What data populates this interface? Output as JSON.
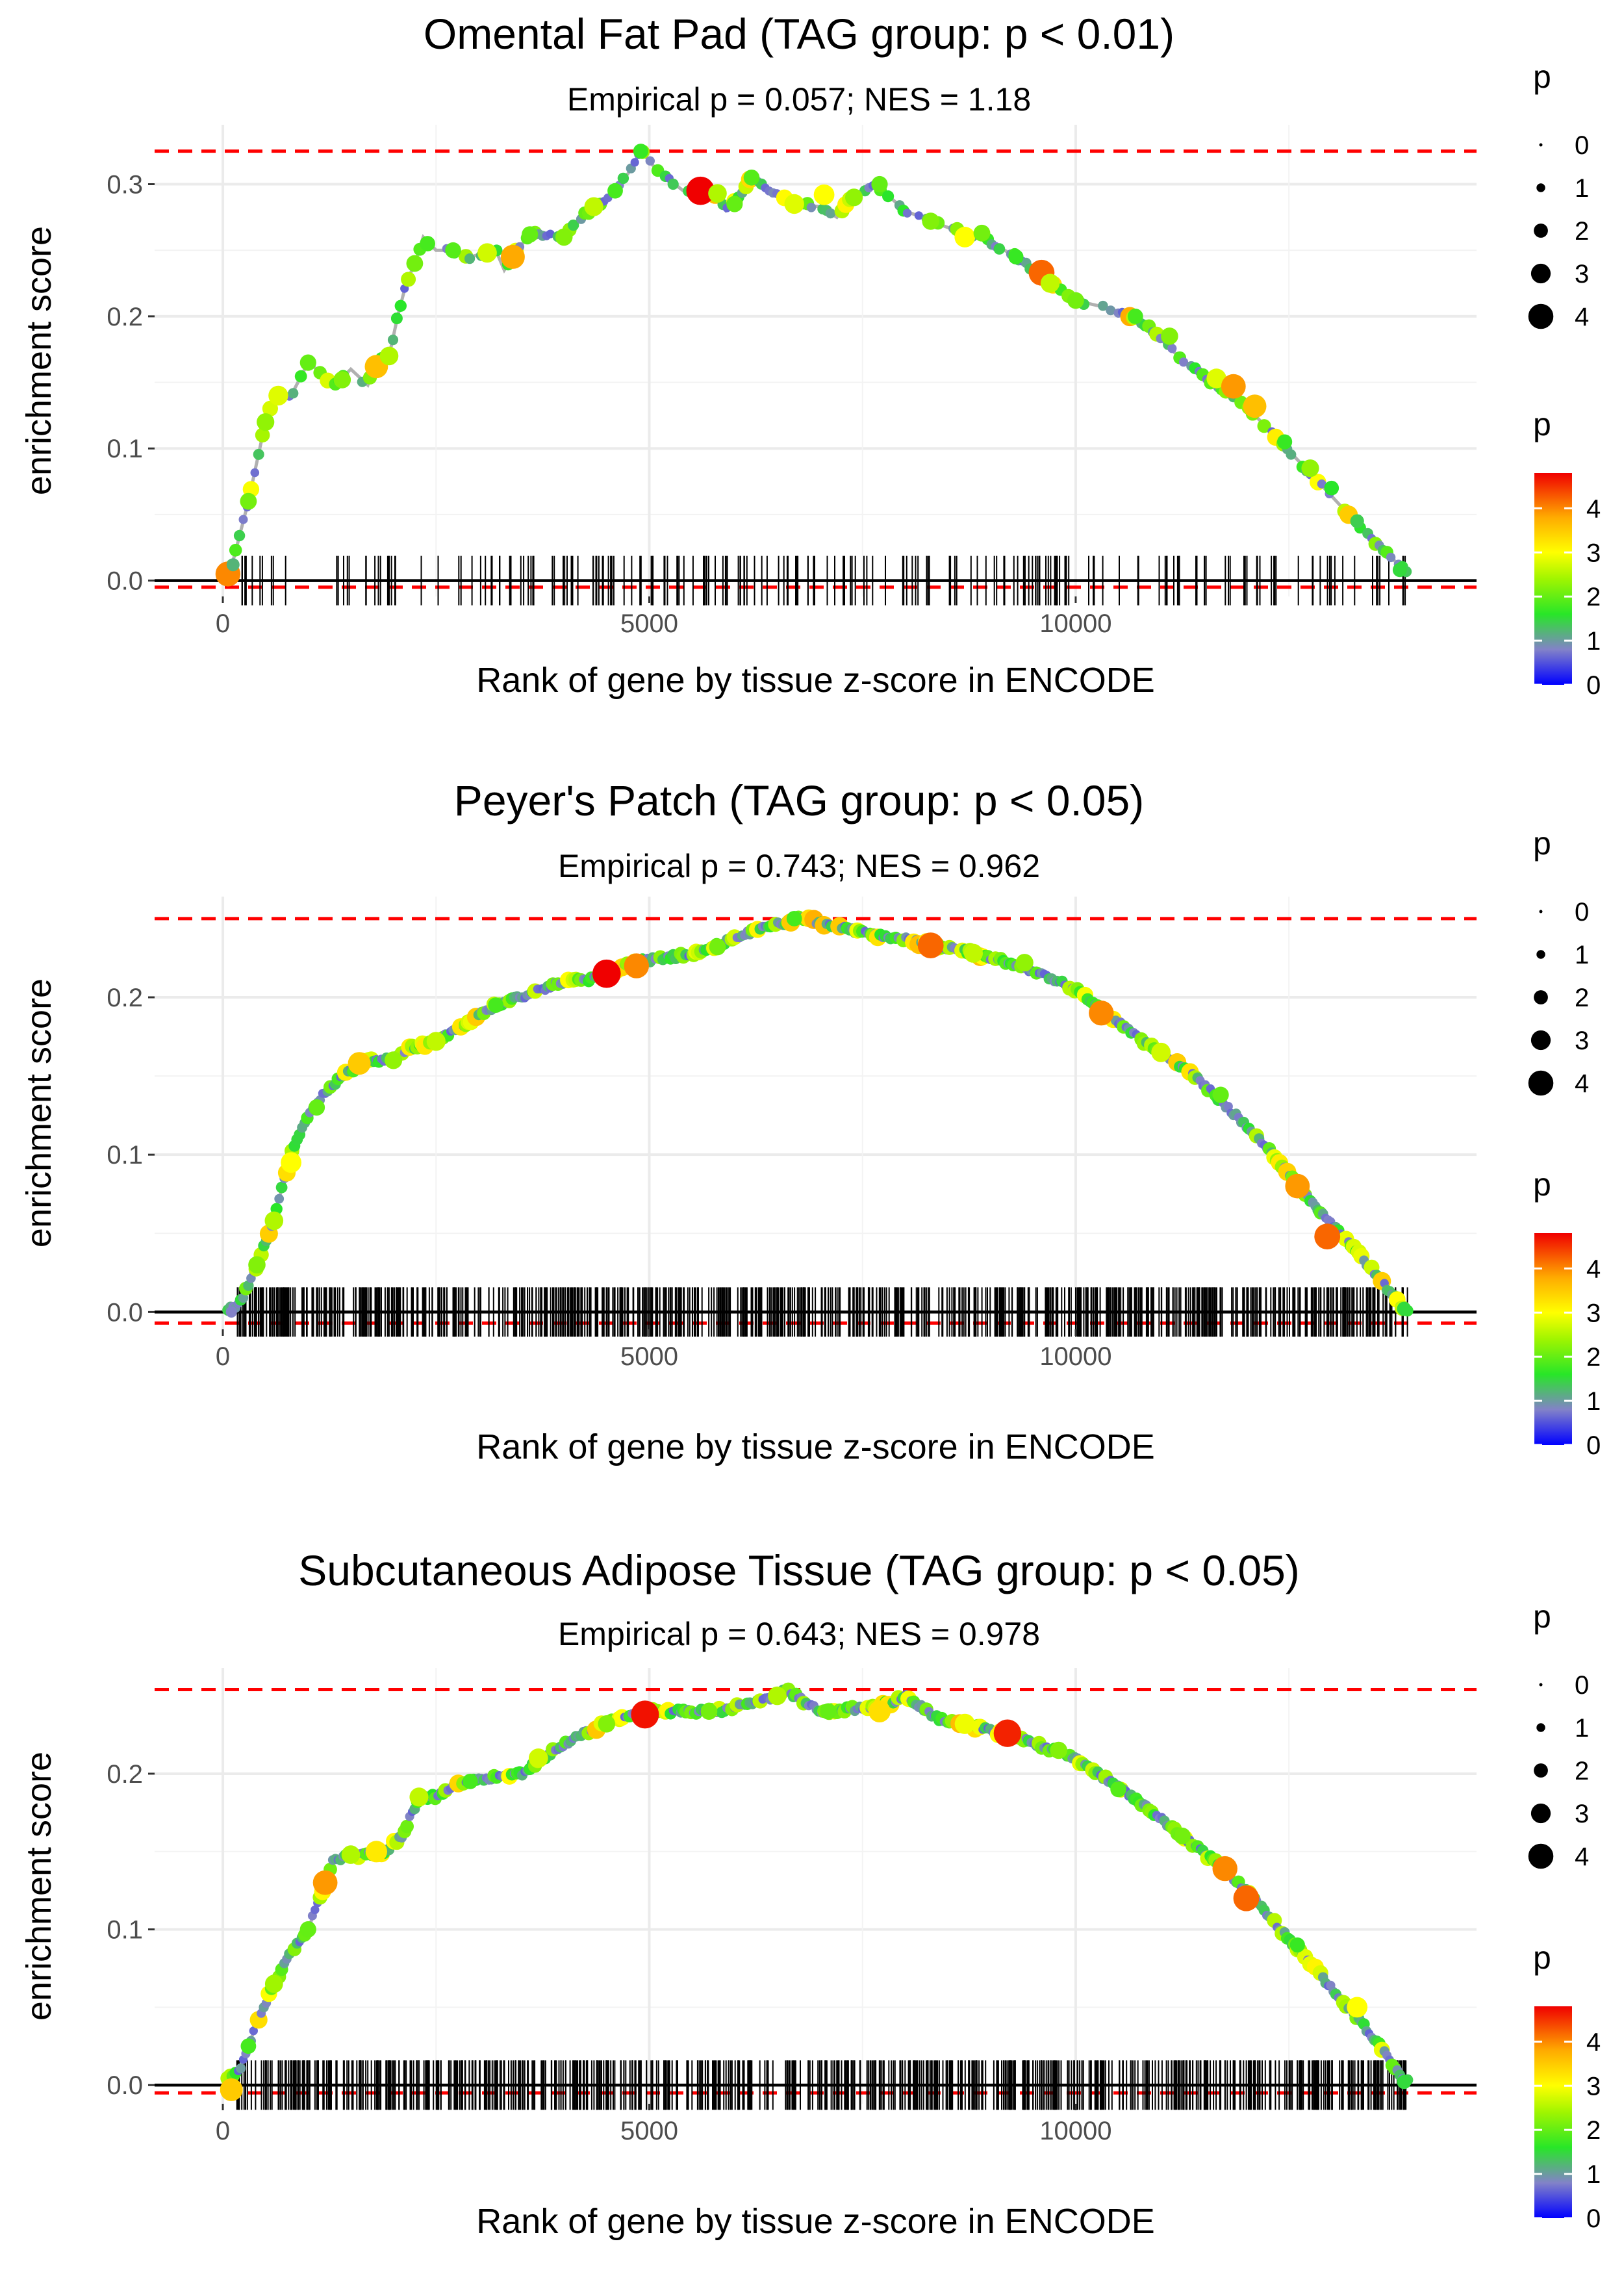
{
  "chart_data": [
    {
      "type": "line",
      "title": "Omental Fat Pad (TAG group: p < 0.01)",
      "subtitle": "Empirical p = 0.057; NES = 1.18",
      "xlabel": "Rank of gene by tissue z-score in ENCODE",
      "ylabel": "enrichment score",
      "xlim": [
        -800,
        14700
      ],
      "ylim": [
        -0.012,
        0.345
      ],
      "xticks": [
        0,
        5000,
        10000
      ],
      "xtick_labels": [
        "0",
        "5000",
        "10000"
      ],
      "yticks": [
        0,
        0.1,
        0.2,
        0.3
      ],
      "ytick_labels": [
        "0.0",
        "0.1",
        "0.2",
        "0.3"
      ],
      "grid": true,
      "max_es": 0.325,
      "min_es": -0.005,
      "gene_rank_max": 13900,
      "running_es": [
        [
          0,
          0
        ],
        [
          100,
          0.01
        ],
        [
          200,
          0.035
        ],
        [
          300,
          0.06
        ],
        [
          400,
          0.09
        ],
        [
          500,
          0.12
        ],
        [
          600,
          0.14
        ],
        [
          800,
          0.14
        ],
        [
          1000,
          0.165
        ],
        [
          1100,
          0.16
        ],
        [
          1300,
          0.148
        ],
        [
          1350,
          0.15
        ],
        [
          1500,
          0.16
        ],
        [
          1700,
          0.148
        ],
        [
          1800,
          0.165
        ],
        [
          1950,
          0.17
        ],
        [
          2050,
          0.2
        ],
        [
          2150,
          0.225
        ],
        [
          2250,
          0.24
        ],
        [
          2350,
          0.26
        ],
        [
          2500,
          0.25
        ],
        [
          2700,
          0.25
        ],
        [
          2900,
          0.245
        ],
        [
          3200,
          0.25
        ],
        [
          3300,
          0.235
        ],
        [
          3450,
          0.25
        ],
        [
          3600,
          0.262
        ],
        [
          3800,
          0.262
        ],
        [
          4000,
          0.26
        ],
        [
          4200,
          0.275
        ],
        [
          4400,
          0.285
        ],
        [
          4600,
          0.295
        ],
        [
          4750,
          0.308
        ],
        [
          4900,
          0.325
        ],
        [
          5100,
          0.31
        ],
        [
          5400,
          0.295
        ],
        [
          5700,
          0.298
        ],
        [
          5900,
          0.28
        ],
        [
          6050,
          0.29
        ],
        [
          6200,
          0.305
        ],
        [
          6400,
          0.295
        ],
        [
          6700,
          0.285
        ],
        [
          7000,
          0.283
        ],
        [
          7200,
          0.275
        ],
        [
          7400,
          0.292
        ],
        [
          7650,
          0.3
        ],
        [
          8000,
          0.28
        ],
        [
          8300,
          0.272
        ],
        [
          8600,
          0.265
        ],
        [
          8900,
          0.26
        ],
        [
          9300,
          0.245
        ],
        [
          9700,
          0.225
        ],
        [
          10000,
          0.212
        ],
        [
          10400,
          0.206
        ],
        [
          10800,
          0.195
        ],
        [
          11200,
          0.17
        ],
        [
          11600,
          0.15
        ],
        [
          12000,
          0.132
        ],
        [
          12400,
          0.105
        ],
        [
          12800,
          0.078
        ],
        [
          13200,
          0.05
        ],
        [
          13500,
          0.03
        ],
        [
          13850,
          0.008
        ]
      ],
      "hits": [
        [
          60,
          0.005,
          4.0
        ],
        [
          120,
          0.012,
          1.2
        ],
        [
          300,
          0.06,
          2.1
        ],
        [
          500,
          0.12,
          2.3
        ],
        [
          650,
          0.14,
          2.8
        ],
        [
          1000,
          0.165,
          2.0
        ],
        [
          1400,
          0.152,
          2.2
        ],
        [
          1800,
          0.162,
          3.6
        ],
        [
          1950,
          0.17,
          2.5
        ],
        [
          2250,
          0.24,
          2.1
        ],
        [
          2400,
          0.255,
          1.8
        ],
        [
          2700,
          0.25,
          1.9
        ],
        [
          3100,
          0.248,
          2.7
        ],
        [
          3400,
          0.245,
          3.8
        ],
        [
          3600,
          0.262,
          2.0
        ],
        [
          4000,
          0.26,
          2.2
        ],
        [
          4350,
          0.283,
          2.6
        ],
        [
          4600,
          0.295,
          1.8
        ],
        [
          4900,
          0.325,
          1.7
        ],
        [
          5600,
          0.295,
          4.8
        ],
        [
          5800,
          0.293,
          2.5
        ],
        [
          6000,
          0.285,
          2.0
        ],
        [
          6200,
          0.305,
          1.9
        ],
        [
          6700,
          0.285,
          2.8
        ],
        [
          7050,
          0.292,
          3.0
        ],
        [
          7400,
          0.29,
          2.3
        ],
        [
          7700,
          0.3,
          2.0
        ],
        [
          8300,
          0.272,
          2.2
        ],
        [
          8700,
          0.26,
          3.0
        ],
        [
          8900,
          0.263,
          2.1
        ],
        [
          9300,
          0.245,
          1.7
        ],
        [
          9600,
          0.233,
          4.2
        ],
        [
          9700,
          0.225,
          2.6
        ],
        [
          10000,
          0.212,
          2.1
        ],
        [
          10700,
          0.2,
          1.8
        ],
        [
          11100,
          0.185,
          2.2
        ],
        [
          11650,
          0.153,
          2.8
        ],
        [
          11850,
          0.147,
          3.9
        ],
        [
          12100,
          0.132,
          3.6
        ],
        [
          12450,
          0.105,
          1.7
        ],
        [
          12750,
          0.085,
          2.3
        ],
        [
          13000,
          0.07,
          1.6
        ],
        [
          13300,
          0.045,
          1.4
        ],
        [
          13800,
          0.008,
          1.5
        ]
      ],
      "rug_count": 220,
      "legend_size_title": "p",
      "legend_size_values": [
        "0",
        "1",
        "2",
        "3",
        "4"
      ],
      "legend_color_title": "p",
      "legend_color_ticks": [
        "0",
        "1",
        "2",
        "3",
        "4"
      ],
      "color_max": 4.8
    },
    {
      "type": "line",
      "title": "Peyer's Patch (TAG group: p < 0.05)",
      "subtitle": "Empirical p = 0.743; NES = 0.962",
      "xlabel": "Rank of gene by tissue z-score in ENCODE",
      "ylabel": "enrichment score",
      "xlim": [
        -800,
        14700
      ],
      "ylim": [
        -0.011,
        0.264
      ],
      "xticks": [
        0,
        5000,
        10000
      ],
      "xtick_labels": [
        "0",
        "5000",
        "10000"
      ],
      "yticks": [
        0,
        0.1,
        0.2
      ],
      "ytick_labels": [
        "0.0",
        "0.1",
        "0.2"
      ],
      "grid": true,
      "max_es": 0.25,
      "min_es": -0.007,
      "gene_rank_max": 13900,
      "running_es": [
        [
          0,
          0
        ],
        [
          200,
          0.005
        ],
        [
          400,
          0.03
        ],
        [
          600,
          0.06
        ],
        [
          800,
          0.1
        ],
        [
          1000,
          0.125
        ],
        [
          1200,
          0.14
        ],
        [
          1400,
          0.15
        ],
        [
          1700,
          0.16
        ],
        [
          2000,
          0.16
        ],
        [
          2200,
          0.168
        ],
        [
          2500,
          0.172
        ],
        [
          2800,
          0.182
        ],
        [
          3200,
          0.195
        ],
        [
          3600,
          0.202
        ],
        [
          4000,
          0.21
        ],
        [
          4400,
          0.212
        ],
        [
          4800,
          0.222
        ],
        [
          5200,
          0.225
        ],
        [
          5600,
          0.228
        ],
        [
          6000,
          0.238
        ],
        [
          6400,
          0.245
        ],
        [
          6800,
          0.25
        ],
        [
          7200,
          0.245
        ],
        [
          7600,
          0.24
        ],
        [
          8000,
          0.237
        ],
        [
          8400,
          0.232
        ],
        [
          8800,
          0.228
        ],
        [
          9200,
          0.222
        ],
        [
          9600,
          0.215
        ],
        [
          10000,
          0.205
        ],
        [
          10400,
          0.188
        ],
        [
          10800,
          0.172
        ],
        [
          11200,
          0.158
        ],
        [
          11600,
          0.14
        ],
        [
          12000,
          0.118
        ],
        [
          12400,
          0.095
        ],
        [
          12800,
          0.068
        ],
        [
          13200,
          0.045
        ],
        [
          13500,
          0.025
        ],
        [
          13850,
          0.002
        ]
      ],
      "hits": [
        [
          100,
          0.0,
          0.8
        ],
        [
          400,
          0.03,
          2.2
        ],
        [
          600,
          0.058,
          2.5
        ],
        [
          800,
          0.095,
          3.0
        ],
        [
          1100,
          0.13,
          2.0
        ],
        [
          1600,
          0.158,
          3.5
        ],
        [
          2000,
          0.16,
          2.3
        ],
        [
          2500,
          0.172,
          2.6
        ],
        [
          3200,
          0.195,
          1.8
        ],
        [
          4500,
          0.215,
          4.8
        ],
        [
          4850,
          0.22,
          4.0
        ],
        [
          5800,
          0.232,
          2.1
        ],
        [
          6700,
          0.25,
          1.8
        ],
        [
          8300,
          0.233,
          4.2
        ],
        [
          8800,
          0.228,
          2.6
        ],
        [
          9400,
          0.222,
          2.3
        ],
        [
          10300,
          0.19,
          4.0
        ],
        [
          11000,
          0.165,
          2.7
        ],
        [
          11700,
          0.138,
          2.0
        ],
        [
          12600,
          0.08,
          3.9
        ],
        [
          12950,
          0.048,
          4.2
        ],
        [
          13850,
          0.002,
          1.5
        ]
      ],
      "rug_count": 760,
      "legend_size_title": "p",
      "legend_size_values": [
        "0",
        "1",
        "2",
        "3",
        "4"
      ],
      "legend_color_title": "p",
      "legend_color_ticks": [
        "0",
        "1",
        "2",
        "3",
        "4"
      ],
      "color_max": 4.8
    },
    {
      "type": "line",
      "title": "Subcutaneous Adipose Tissue (TAG group: p < 0.05)",
      "subtitle": "Empirical p = 0.643; NES = 0.978",
      "xlabel": "Rank of gene by tissue z-score in ENCODE",
      "ylabel": "enrichment score",
      "xlim": [
        -800,
        14700
      ],
      "ylim": [
        -0.012,
        0.268
      ],
      "xticks": [
        0,
        5000,
        10000
      ],
      "xtick_labels": [
        "0",
        "5000",
        "10000"
      ],
      "yticks": [
        0,
        0.1,
        0.2
      ],
      "ytick_labels": [
        "0.0",
        "0.1",
        "0.2"
      ],
      "grid": true,
      "max_es": 0.254,
      "min_es": -0.005,
      "gene_rank_max": 13900,
      "running_es": [
        [
          0,
          0
        ],
        [
          200,
          0.01
        ],
        [
          400,
          0.04
        ],
        [
          600,
          0.065
        ],
        [
          800,
          0.085
        ],
        [
          1000,
          0.1
        ],
        [
          1200,
          0.13
        ],
        [
          1300,
          0.145
        ],
        [
          1600,
          0.148
        ],
        [
          1900,
          0.15
        ],
        [
          2100,
          0.16
        ],
        [
          2300,
          0.185
        ],
        [
          2500,
          0.185
        ],
        [
          2800,
          0.195
        ],
        [
          3200,
          0.198
        ],
        [
          3500,
          0.2
        ],
        [
          3800,
          0.212
        ],
        [
          4200,
          0.225
        ],
        [
          4600,
          0.235
        ],
        [
          5000,
          0.24
        ],
        [
          5400,
          0.24
        ],
        [
          5800,
          0.24
        ],
        [
          6200,
          0.245
        ],
        [
          6500,
          0.25
        ],
        [
          6600,
          0.254
        ],
        [
          7000,
          0.24
        ],
        [
          7500,
          0.242
        ],
        [
          7800,
          0.245
        ],
        [
          8000,
          0.25
        ],
        [
          8400,
          0.235
        ],
        [
          8800,
          0.23
        ],
        [
          9200,
          0.225
        ],
        [
          9600,
          0.218
        ],
        [
          10000,
          0.21
        ],
        [
          10400,
          0.195
        ],
        [
          10800,
          0.18
        ],
        [
          11200,
          0.162
        ],
        [
          11600,
          0.145
        ],
        [
          12000,
          0.125
        ],
        [
          12400,
          0.1
        ],
        [
          12800,
          0.075
        ],
        [
          13200,
          0.05
        ],
        [
          13500,
          0.03
        ],
        [
          13850,
          0.002
        ]
      ],
      "hits": [
        [
          100,
          -0.003,
          3.5
        ],
        [
          300,
          0.025,
          1.8
        ],
        [
          600,
          0.065,
          2.4
        ],
        [
          1000,
          0.1,
          2.0
        ],
        [
          1200,
          0.13,
          3.9
        ],
        [
          1500,
          0.148,
          2.5
        ],
        [
          1800,
          0.15,
          3.2
        ],
        [
          2300,
          0.185,
          2.6
        ],
        [
          2900,
          0.195,
          1.8
        ],
        [
          3700,
          0.21,
          2.7
        ],
        [
          4500,
          0.232,
          2.2
        ],
        [
          4950,
          0.238,
          4.7
        ],
        [
          5700,
          0.24,
          2.1
        ],
        [
          6500,
          0.25,
          2.5
        ],
        [
          7100,
          0.24,
          2.0
        ],
        [
          7700,
          0.24,
          3.3
        ],
        [
          8700,
          0.232,
          2.9
        ],
        [
          9200,
          0.226,
          4.6
        ],
        [
          9800,
          0.215,
          2.2
        ],
        [
          10500,
          0.19,
          1.9
        ],
        [
          11250,
          0.16,
          2.1
        ],
        [
          11750,
          0.139,
          4.0
        ],
        [
          12000,
          0.12,
          4.2
        ],
        [
          12600,
          0.09,
          1.7
        ],
        [
          13300,
          0.05,
          3.0
        ],
        [
          13850,
          0.002,
          1.5
        ]
      ],
      "rug_count": 720,
      "legend_size_title": "p",
      "legend_size_values": [
        "0",
        "1",
        "2",
        "3",
        "4"
      ],
      "legend_color_title": "p",
      "legend_color_ticks": [
        "0",
        "1",
        "2",
        "3",
        "4"
      ],
      "color_max": 4.8
    }
  ]
}
